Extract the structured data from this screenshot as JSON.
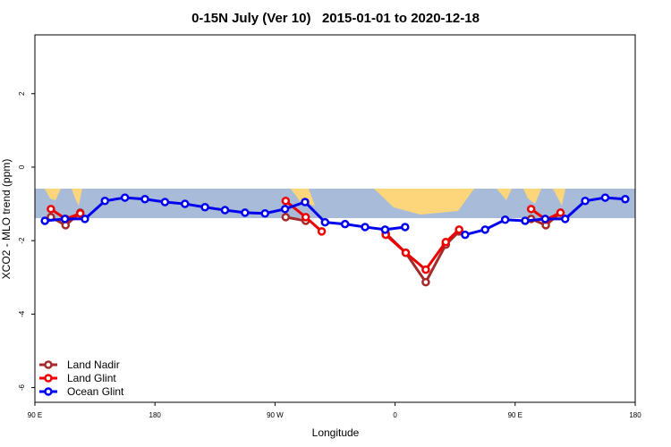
{
  "chart_data": {
    "type": "line",
    "title": "0-15N July (Ver 10)   2015-01-01 to 2020-12-18",
    "x_label": "Longitude",
    "y_label": "XCO2 - MLO trend (ppm)",
    "xlim": [
      90,
      540
    ],
    "ylim": [
      -6.4,
      3.6
    ],
    "xticks": [
      {
        "value": 90,
        "label": "90 E"
      },
      {
        "value": 180,
        "label": "180"
      },
      {
        "value": 270,
        "label": "90 W"
      },
      {
        "value": 360,
        "label": "0"
      },
      {
        "value": 450,
        "label": "90 E"
      },
      {
        "value": 540,
        "label": "180"
      }
    ],
    "yticks": [
      -6,
      -4,
      -2,
      0,
      2
    ],
    "legend": "bottomleft",
    "series": [
      {
        "name": "Land Nadir",
        "color": "#a52a2a",
        "x": [
          102,
          113,
          124,
          278,
          293,
          353,
          368,
          383,
          398,
          408,
          462,
          473,
          484
        ],
        "values": [
          -1.36,
          -1.58,
          -1.24,
          -1.36,
          -1.46,
          -1.8,
          -2.33,
          -3.13,
          -2.11,
          -1.75,
          -1.41,
          -1.58,
          -1.24
        ]
      },
      {
        "name": "Land Glint",
        "color": "#ee0000",
        "x": [
          102,
          113,
          124,
          278,
          293,
          305,
          353,
          368,
          383,
          398,
          408,
          462,
          473,
          484
        ],
        "values": [
          -1.14,
          -1.41,
          -1.26,
          -0.92,
          -1.36,
          -1.75,
          -1.84,
          -2.33,
          -2.79,
          -2.04,
          -1.7,
          -1.14,
          -1.43,
          -1.24
        ]
      },
      {
        "name": "Ocean Glint",
        "color": "#0000ee",
        "x": [
          97.5,
          112.5,
          127.5,
          142.5,
          157.5,
          172.5,
          187.5,
          202.5,
          217.5,
          232.5,
          247.5,
          262.5,
          277.5,
          292.5,
          307.5,
          322.5,
          337.5,
          352.5,
          367.5,
          382.5,
          397.5,
          412.5,
          427.5,
          442.5,
          457.5,
          472.5,
          487.5,
          502.5,
          517.5,
          532.5
        ],
        "values": [
          -1.46,
          -1.41,
          -1.41,
          -0.92,
          -0.83,
          -0.87,
          -0.95,
          -1.0,
          -1.09,
          -1.17,
          -1.24,
          -1.26,
          -1.14,
          -0.95,
          -1.5,
          -1.55,
          -1.63,
          -1.7,
          -1.63,
          null,
          null,
          -1.84,
          -1.7,
          -1.43,
          -1.46,
          -1.41,
          -1.41,
          -0.92,
          -0.83,
          -0.87
        ]
      }
    ]
  }
}
